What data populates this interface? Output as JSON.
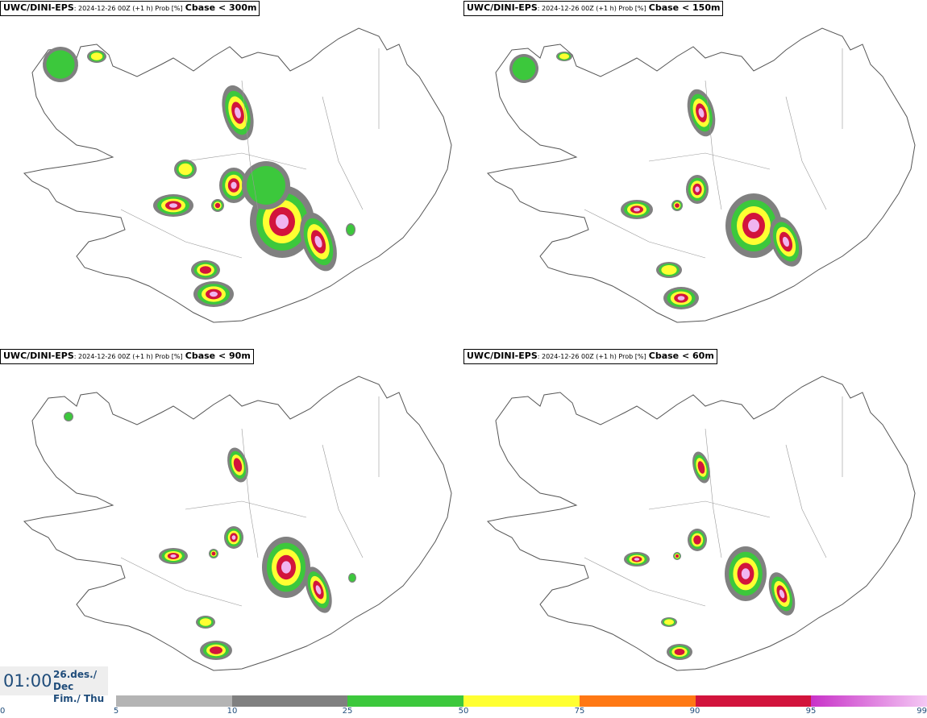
{
  "panels": [
    {
      "source": "UWC/DINI-EPS",
      "meta": ": 2024-12-26 00Z (+1 h) Prob [%]",
      "param": "Cbase < 300m"
    },
    {
      "source": "UWC/DINI-EPS",
      "meta": ": 2024-12-26 00Z (+1 h) Prob [%]",
      "param": "Cbase < 150m"
    },
    {
      "source": "UWC/DINI-EPS",
      "meta": ": 2024-12-26 00Z (+1 h) Prob [%]",
      "param": "Cbase < 90m"
    },
    {
      "source": "UWC/DINI-EPS",
      "meta": ": 2024-12-26 00Z (+1 h) Prob [%]",
      "param": "Cbase < 60m"
    }
  ],
  "time": {
    "clock": "01:00",
    "date_line1": "26.des./ Dec",
    "date_line2": "Fim./ Thu"
  },
  "colorbar": {
    "colors": [
      "#b4b4b4",
      "#808080",
      "#3cc83c",
      "#ffff32",
      "#ff7814",
      "#d2143c",
      "#c832c8",
      "linear"
    ],
    "ticks": [
      "0",
      "5",
      "10",
      "25",
      "50",
      "75",
      "90",
      "95",
      "99"
    ]
  },
  "icons": {
    "land": "iceland-outline",
    "prob": "probability-field"
  }
}
